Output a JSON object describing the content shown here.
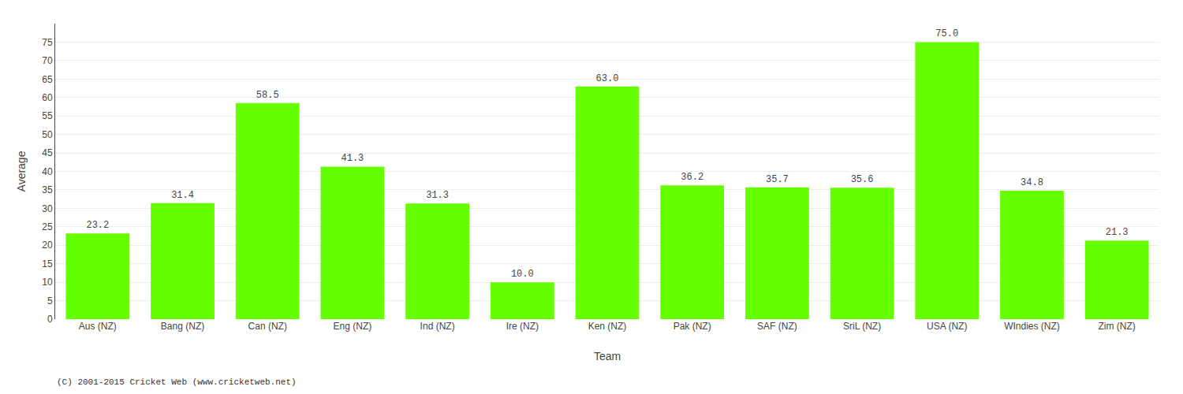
{
  "chart_data": {
    "type": "bar",
    "xlabel": "Team",
    "ylabel": "Average",
    "annotations": [
      "(C) 2001-2015 Cricket Web (www.cricketweb.net)"
    ],
    "categories": [
      "Aus (NZ)",
      "Bang (NZ)",
      "Can (NZ)",
      "Eng (NZ)",
      "Ind (NZ)",
      "Ire (NZ)",
      "Ken (NZ)",
      "Pak (NZ)",
      "SAF (NZ)",
      "SriL (NZ)",
      "USA (NZ)",
      "WIndies (NZ)",
      "Zim (NZ)"
    ],
    "values": [
      23.2,
      31.4,
      58.5,
      41.3,
      31.3,
      10.0,
      63.0,
      36.2,
      35.7,
      35.6,
      75.0,
      34.8,
      21.3
    ],
    "value_labels": [
      "23.2",
      "31.4",
      "58.5",
      "41.3",
      "31.3",
      "10.0",
      "63.0",
      "36.2",
      "35.7",
      "35.6",
      "75.0",
      "34.8",
      "21.3"
    ],
    "data_labels": true,
    "color": "#66ff00",
    "ylim": [
      0,
      80
    ],
    "yticks": [
      0,
      5,
      10,
      15,
      20,
      25,
      30,
      35,
      40,
      45,
      50,
      55,
      60,
      65,
      70,
      75
    ],
    "grid": true
  }
}
